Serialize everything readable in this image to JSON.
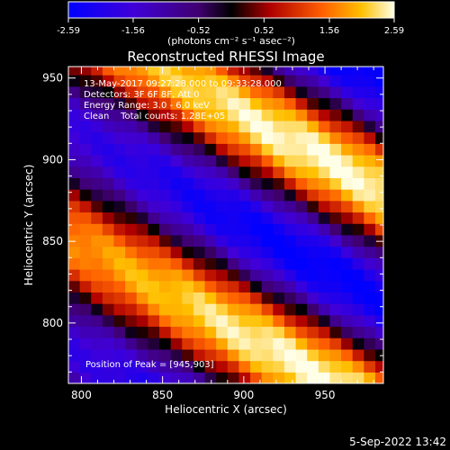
{
  "chart_data": {
    "type": "heatmap",
    "title": "Reconstructed RHESSI Image",
    "xlabel": "Heliocentric X (arcsec)",
    "ylabel": "Heliocentric Y (arcsec)",
    "xlim": [
      792,
      986
    ],
    "ylim": [
      763,
      957
    ],
    "xticks": [
      800,
      850,
      900,
      950
    ],
    "yticks": [
      800,
      850,
      900,
      950
    ],
    "colorbar": {
      "min": -2.59,
      "max": 2.59,
      "ticks": [
        "-2.59",
        "-1.56",
        "-0.52",
        "0.52",
        "1.56",
        "2.59"
      ],
      "unit_label": "(photons cm⁻² s⁻¹ asec⁻²)"
    },
    "annotations": [
      "13-May-2017 09:27:28.000 to 09:33:28.000",
      "Detectors: 3F 6F 8F, Att 0",
      "Energy Range: 3.0 - 6.0 keV",
      "Clean    Total counts: 1.28E+05"
    ],
    "peak_label": "Position of Peak = [945,903]",
    "peak": [
      945,
      903
    ],
    "stripe_direction": "diagonal, upper-left to lower-right"
  },
  "footer": {
    "timestamp": "5-Sep-2022 13:42"
  }
}
